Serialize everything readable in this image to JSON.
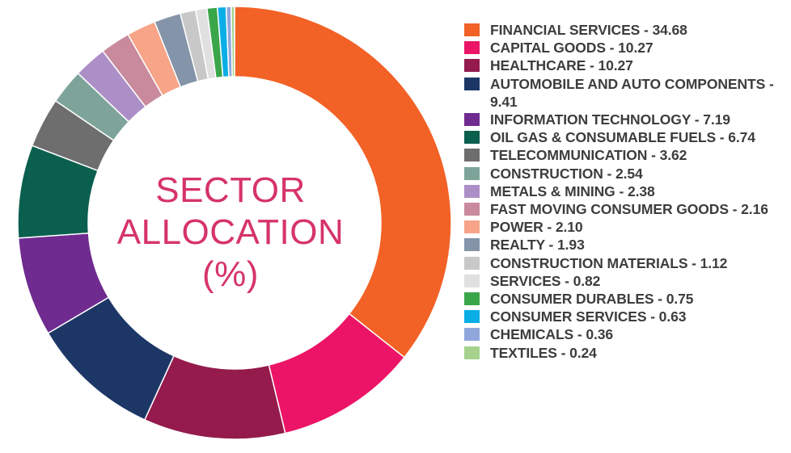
{
  "center_label": {
    "line1": "SECTOR",
    "line2": "ALLOCATION",
    "line3": "(%)"
  },
  "chart_data": {
    "type": "pie",
    "variant": "donut",
    "legend_position": "right",
    "series": [
      {
        "label": "FINANCIAL SERVICES - 34.68",
        "value": 34.68,
        "color": "#f26125"
      },
      {
        "label": "CAPITAL GOODS - 10.27",
        "value": 10.27,
        "color": "#ec1466"
      },
      {
        "label": "HEALTHCARE - 10.27",
        "value": 10.27,
        "color": "#941b4c"
      },
      {
        "label": "AUTOMOBILE AND AUTO COMPONENTS - 9.41",
        "value": 9.41,
        "color": "#1c3766"
      },
      {
        "label": "INFORMATION TECHNOLOGY - 7.19",
        "value": 7.19,
        "color": "#6f2b8f"
      },
      {
        "label": "OIL GAS & CONSUMABLE FUELS - 6.74",
        "value": 6.74,
        "color": "#0a5f4e"
      },
      {
        "label": "TELECOMMUNICATION - 3.62",
        "value": 3.62,
        "color": "#6e6e6e"
      },
      {
        "label": "CONSTRUCTION - 2.54",
        "value": 2.54,
        "color": "#7ea49a"
      },
      {
        "label": "METALS & MINING - 2.38",
        "value": 2.38,
        "color": "#ad8fc7"
      },
      {
        "label": "FAST MOVING CONSUMER GOODS - 2.16",
        "value": 2.16,
        "color": "#c88a9c"
      },
      {
        "label": "POWER - 2.10",
        "value": 2.1,
        "color": "#f7a488"
      },
      {
        "label": "REALTY - 1.93",
        "value": 1.93,
        "color": "#8494a9"
      },
      {
        "label": "CONSTRUCTION MATERIALS - 1.12",
        "value": 1.12,
        "color": "#c8c8c8"
      },
      {
        "label": "SERVICES - 0.82",
        "value": 0.82,
        "color": "#e0e0e0"
      },
      {
        "label": "CONSUMER DURABLES - 0.75",
        "value": 0.75,
        "color": "#3aa64a"
      },
      {
        "label": "CONSUMER SERVICES - 0.63",
        "value": 0.63,
        "color": "#0aaee6"
      },
      {
        "label": "CHEMICALS - 0.36",
        "value": 0.36,
        "color": "#8fa7db"
      },
      {
        "label": "TEXTILES - 0.24",
        "value": 0.24,
        "color": "#a6d28e"
      }
    ]
  }
}
